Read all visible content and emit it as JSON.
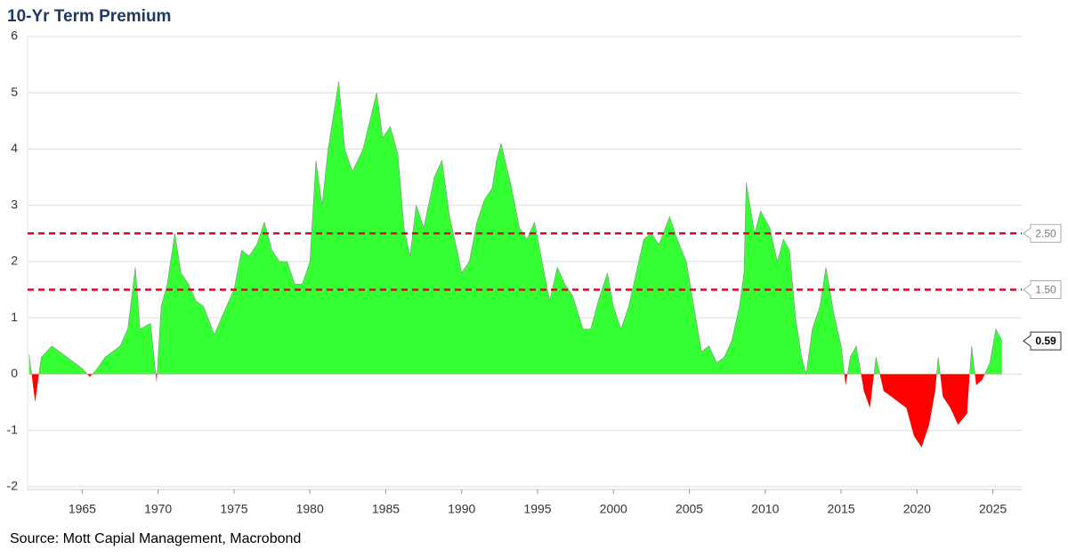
{
  "chart_data": {
    "type": "area",
    "title": "10-Yr Term Premium",
    "source": "Source: Mott Capial Management, Macrobond",
    "x": [
      1961.5,
      1961.9,
      1962.3,
      1963,
      1963.5,
      1964,
      1964.5,
      1965,
      1965.5,
      1966,
      1966.5,
      1967,
      1967.5,
      1968,
      1968.5,
      1968.8,
      1969.5,
      1969.9,
      1970.2,
      1970.6,
      1971.1,
      1971.5,
      1972,
      1972.5,
      1973,
      1973.7,
      1974.5,
      1975,
      1975.5,
      1976,
      1976.5,
      1977,
      1977.5,
      1978,
      1978.5,
      1979,
      1979.5,
      1980,
      1980.4,
      1980.8,
      1981.2,
      1981.9,
      1982.3,
      1982.8,
      1983.5,
      1984.4,
      1984.8,
      1985.3,
      1985.8,
      1986.2,
      1986.6,
      1987,
      1987.5,
      1988.2,
      1988.7,
      1989.2,
      1989.7,
      1990,
      1990.5,
      1991,
      1991.5,
      1992,
      1992.3,
      1992.6,
      1993.3,
      1993.8,
      1994.3,
      1994.8,
      1995.3,
      1995.8,
      1996.3,
      1996.8,
      1997.3,
      1998,
      1998.5,
      1999,
      1999.6,
      2000,
      2000.5,
      2001,
      2001.5,
      2002,
      2002.5,
      2003,
      2003.7,
      2004.2,
      2004.8,
      2005.3,
      2005.8,
      2006.3,
      2006.8,
      2007.3,
      2007.8,
      2008.3,
      2008.6,
      2008.75,
      2009.3,
      2009.7,
      2010.3,
      2010.8,
      2011.2,
      2011.6,
      2012,
      2012.4,
      2012.7,
      2013.1,
      2013.6,
      2014,
      2014.5,
      2015,
      2015.3,
      2015.6,
      2016,
      2016.5,
      2016.9,
      2017.3,
      2017.8,
      2018.3,
      2018.8,
      2019.3,
      2019.8,
      2020.3,
      2020.8,
      2021.2,
      2021.4,
      2021.7,
      2022.2,
      2022.7,
      2023.3,
      2023.6,
      2023.9,
      2024.3,
      2024.8,
      2025.2,
      2025.6
    ],
    "values": [
      0.35,
      -0.5,
      0.3,
      0.5,
      0.4,
      0.3,
      0.2,
      0.1,
      -0.05,
      0.1,
      0.3,
      0.4,
      0.5,
      0.8,
      1.9,
      0.8,
      0.9,
      -0.15,
      1.2,
      1.6,
      2.5,
      1.8,
      1.6,
      1.3,
      1.2,
      0.7,
      1.2,
      1.5,
      2.2,
      2.1,
      2.3,
      2.7,
      2.2,
      2.0,
      2.0,
      1.6,
      1.6,
      2.0,
      3.8,
      3.0,
      4.0,
      5.2,
      4.0,
      3.6,
      4.0,
      5.0,
      4.2,
      4.4,
      3.9,
      2.6,
      2.1,
      3.0,
      2.6,
      3.5,
      3.8,
      2.8,
      2.2,
      1.8,
      2.0,
      2.7,
      3.1,
      3.3,
      3.8,
      4.1,
      3.3,
      2.6,
      2.4,
      2.7,
      2.0,
      1.3,
      1.9,
      1.6,
      1.4,
      0.8,
      0.8,
      1.3,
      1.8,
      1.2,
      0.8,
      1.2,
      1.8,
      2.4,
      2.5,
      2.3,
      2.8,
      2.4,
      2.0,
      1.2,
      0.4,
      0.5,
      0.2,
      0.3,
      0.6,
      1.2,
      1.8,
      3.4,
      2.5,
      2.9,
      2.6,
      2.0,
      2.4,
      2.2,
      1.0,
      0.3,
      0.0,
      0.8,
      1.2,
      1.9,
      1.1,
      0.5,
      -0.2,
      0.3,
      0.5,
      -0.3,
      -0.6,
      0.3,
      -0.3,
      -0.4,
      -0.5,
      -0.6,
      -1.1,
      -1.3,
      -0.9,
      -0.3,
      0.3,
      -0.4,
      -0.6,
      -0.9,
      -0.7,
      0.5,
      -0.2,
      -0.1,
      0.2,
      0.8,
      0.59
    ],
    "positive_color": "#33ff33",
    "negative_color": "#ff0000",
    "line_color": "#8a8a8a",
    "xlim": [
      1961.4,
      2026.9
    ],
    "xticks": [
      1965,
      1970,
      1975,
      1980,
      1985,
      1990,
      1995,
      2000,
      2005,
      2010,
      2015,
      2020,
      2025
    ],
    "ylim": [
      -2.05,
      6
    ],
    "yticks": [
      -2,
      -1,
      0,
      1,
      2,
      3,
      4,
      5,
      6
    ],
    "grid": true,
    "reference_lines": [
      {
        "value": 2.5,
        "label": "2.50",
        "color": "#e8002a"
      },
      {
        "value": 1.5,
        "label": "1.50",
        "color": "#e8002a"
      }
    ],
    "last_value_label": {
      "value": 0.59,
      "label": "0.59"
    }
  }
}
